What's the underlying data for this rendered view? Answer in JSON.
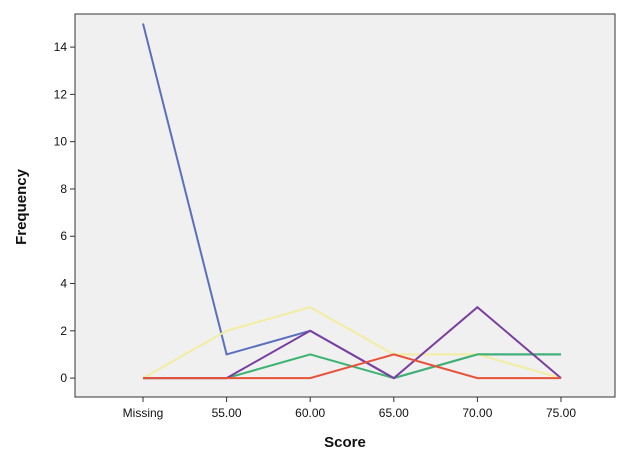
{
  "chart_data": {
    "type": "line",
    "title": "",
    "xlabel": "Score",
    "ylabel": "Frequency",
    "categories": [
      "Missing",
      "55.00",
      "60.00",
      "65.00",
      "70.00",
      "75.00"
    ],
    "ylim": [
      -0.8,
      15.4
    ],
    "yticks": [
      0,
      2,
      4,
      6,
      8,
      10,
      12,
      14
    ],
    "grid": false,
    "legend": "none",
    "plot_background": "#f0f0f0",
    "series": [
      {
        "color": "#5b6fc0",
        "values": [
          15,
          1,
          2,
          0,
          1,
          1
        ]
      },
      {
        "color": "#f2eda0",
        "values": [
          0,
          2,
          3,
          1,
          1,
          0
        ]
      },
      {
        "color": "#3cb371",
        "values": [
          0,
          0,
          1,
          0,
          1,
          1
        ]
      },
      {
        "color": "#7a3fa0",
        "values": [
          0,
          0,
          2,
          0,
          3,
          0
        ]
      },
      {
        "color": "#e8513a",
        "values": [
          0,
          0,
          0,
          1,
          0,
          0
        ]
      }
    ]
  }
}
